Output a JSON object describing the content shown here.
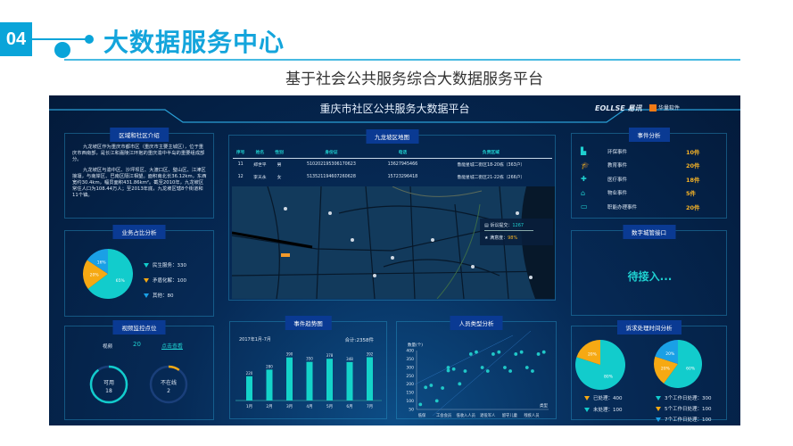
{
  "slide": {
    "number": "04",
    "title": "大数据服务中心",
    "subtitle": "基于社会公共服务综合大数据服务平台",
    "accent": "#0aa4d9"
  },
  "dashboard": {
    "title": "重庆市社区公共服务大数据平台",
    "logo_text": "EOLLSE 易讯",
    "partner_logo": "华量软件"
  },
  "intro": {
    "title": "区域和社区介绍",
    "p1": "九龙坡区作为重庆市都市区（重庆市主要主城区），位于重庆市西南部，是长江和嘉陵江环抱的重庆渝中半岛的重要组成部分。",
    "p2": "九龙坡区与渝中区、沙坪坝区、大渡口区、璧山区、江津区接壤，与南岸区、巴南区隔江相望。面积南北长36.12km，东西宽约30.4km，幅员面积431.86km²。截至2010年，九龙坡区常住人口为108.44万人；至2013年底，九龙坡区辖8个街道和11个镇。"
  },
  "business": {
    "title": "业务占比分析",
    "chart_data": {
      "type": "pie",
      "slices": [
        {
          "label": "民生服务",
          "value": 330,
          "pct": "65%",
          "color": "#12cccc"
        },
        {
          "label": "矛盾化解",
          "value": 100,
          "pct": "20%",
          "color": "#f6a913"
        },
        {
          "label": "其他",
          "value": 80,
          "pct": "16%",
          "color": "#1aa0e6"
        }
      ]
    },
    "legend": [
      "民生服务：330",
      "矛盾化解：100",
      "其他：80"
    ]
  },
  "video": {
    "title": "视频监控点位",
    "label": "视频",
    "count": "20",
    "link": "点击查看",
    "available_label": "可用",
    "available": "18",
    "offline_label": "不在线",
    "offline": "2",
    "available_fraction": 0.9,
    "offline_fraction": 0.1
  },
  "map": {
    "title": "九龙坡区地图",
    "columns": [
      "序号",
      "姓名",
      "性别",
      "身份证",
      "电话",
      "负责区域"
    ],
    "rows": [
      [
        "11",
        "郑世平",
        "男",
        "510202195306170623",
        "13627945466",
        "鲁能星城二街区18-20栋（363户）"
      ],
      [
        "12",
        "李天永",
        "女",
        "513521194607260628",
        "15723296418",
        "鲁能星城二街区21-22栋（266户）"
      ]
    ],
    "stats": {
      "submit_label": "诉讼提交：",
      "submit": "1267",
      "satisfaction_label": "满意度：",
      "satisfaction": "98%"
    }
  },
  "trend": {
    "title": "事件趋势图",
    "period": "2017年1月-7月",
    "total": "合计:2358件",
    "chart_data": {
      "type": "bar",
      "categories": [
        "1月",
        "2月",
        "3月",
        "4月",
        "5月",
        "6月",
        "7月"
      ],
      "values": [
        220,
        280,
        390,
        350,
        378,
        348,
        392
      ],
      "ylim": [
        0,
        420
      ]
    }
  },
  "people": {
    "title": "人员类型分析",
    "chart_data": {
      "type": "scatter",
      "ylabel": "数量(个)",
      "xlabel": "类型",
      "categories": [
        "低保",
        "工会会员",
        "低收入人员",
        "退役军人",
        "留守儿童",
        "残疾人员"
      ],
      "yticks": [
        50,
        100,
        150,
        200,
        250,
        300,
        350,
        400
      ],
      "ylim": [
        50,
        400
      ],
      "points": [
        [
          -0.07,
          80
        ],
        [
          0.17,
          181
        ],
        [
          0.42,
          193
        ],
        [
          0.68,
          101
        ],
        [
          0.94,
          177
        ],
        [
          1.2,
          299
        ],
        [
          1.2,
          281
        ],
        [
          1.45,
          290
        ],
        [
          1.72,
          202
        ],
        [
          1.97,
          278
        ],
        [
          2.23,
          379
        ],
        [
          2.48,
          391
        ],
        [
          2.75,
          299
        ],
        [
          3.0,
          278
        ],
        [
          3.25,
          379
        ],
        [
          3.51,
          391
        ],
        [
          3.78,
          299
        ],
        [
          4.03,
          278
        ],
        [
          4.28,
          379
        ],
        [
          4.54,
          391
        ],
        [
          4.79,
          299
        ],
        [
          5.04,
          278
        ],
        [
          5.31,
          379
        ],
        [
          5.56,
          391
        ]
      ]
    }
  },
  "events": {
    "title": "事件分析",
    "items": [
      {
        "icon": "factory-icon",
        "label": "环保事件",
        "value": "10件"
      },
      {
        "icon": "graduation-cap-icon",
        "label": "教育事件",
        "value": "20件"
      },
      {
        "icon": "medical-kit-icon",
        "label": "医疗事件",
        "value": "18件"
      },
      {
        "icon": "house-icon",
        "label": "物业事件",
        "value": "5件"
      },
      {
        "icon": "briefcase-icon",
        "label": "职能办理事件",
        "value": "20件"
      }
    ]
  },
  "port": {
    "title": "数字城管接口",
    "status": "待接入..."
  },
  "appeal": {
    "title": "诉求处理时间分析",
    "chart_data": [
      {
        "type": "pie",
        "slices": [
          {
            "label": "已处理",
            "value": 400,
            "pct": "80%",
            "color": "#12cccc"
          },
          {
            "label": "未处理",
            "value": 100,
            "pct": "20%",
            "color": "#f6a913"
          }
        ]
      },
      {
        "type": "pie",
        "slices": [
          {
            "label": "3个工作日处理",
            "value": 300,
            "pct": "60%",
            "color": "#12cccc"
          },
          {
            "label": "5个工作日处理",
            "value": 100,
            "pct": "20%",
            "color": "#f6a913"
          },
          {
            "label": "7个工作日处理",
            "value": 100,
            "pct": "20%",
            "color": "#1aa0e6"
          }
        ]
      }
    ],
    "legend1": [
      "已处理：400",
      "未处理：100"
    ],
    "legend2": [
      "3个工作日处理：300",
      "5个工作日处理：100",
      "7个工作日处理：100"
    ]
  }
}
